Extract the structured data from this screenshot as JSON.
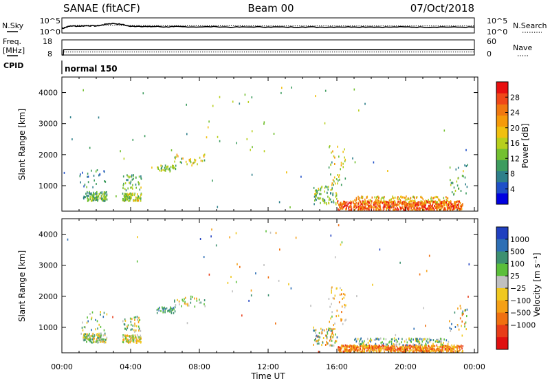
{
  "header": {
    "radar": "SANAE (fitACF)",
    "beam": "Beam 00",
    "date": "07/Oct/2018"
  },
  "colors": {
    "axis": "#000000",
    "ground_scatter": "#666666"
  },
  "chart_data": [
    {
      "id": "noise",
      "type": "line",
      "left_label": "N.Sky",
      "right_label": "N.Search",
      "left_ticks": [
        "10^5",
        "10^0"
      ],
      "right_ticks": [
        "10^5",
        "10^0"
      ],
      "y_log_range": [
        0,
        5
      ],
      "series": [
        {
          "style": "solid",
          "x": [
            0,
            0.2,
            0.5,
            1,
            1.5,
            2,
            2.3,
            2.6,
            3,
            3.5,
            4,
            4.5,
            5,
            5.5,
            6,
            6.5,
            7,
            8,
            9,
            10,
            11,
            12,
            13,
            14,
            15,
            16,
            17,
            18,
            19,
            20,
            21,
            22,
            23,
            24
          ],
          "y": [
            1.2,
            1.7,
            2.3,
            2.2,
            2.4,
            2.3,
            2.6,
            3.1,
            3.3,
            2.9,
            2.1,
            2.2,
            2.0,
            2.1,
            1.9,
            2.0,
            2.0,
            1.9,
            2.0,
            1.8,
            1.9,
            1.9,
            1.8,
            1.9,
            1.8,
            1.9,
            1.9,
            1.9,
            1.8,
            1.9,
            1.8,
            1.9,
            1.8,
            1.8
          ]
        },
        {
          "style": "dotted",
          "x": [
            0,
            0.5,
            1,
            2,
            3,
            4,
            6,
            8,
            10,
            12,
            14,
            16,
            18,
            20,
            22,
            24
          ],
          "y": [
            1.5,
            2.4,
            2.6,
            2.5,
            2.6,
            2.5,
            2.4,
            2.4,
            2.4,
            2.3,
            2.3,
            2.3,
            2.3,
            2.3,
            2.3,
            2.3
          ]
        }
      ]
    },
    {
      "id": "freq-nave",
      "type": "line",
      "left_label_1": "Freq.",
      "left_label_2": "[MHz]",
      "right_label": "Nave",
      "left_ticks": [
        "18",
        "8"
      ],
      "right_ticks": [
        "60",
        "0"
      ],
      "freq_range": [
        8,
        18
      ],
      "nave_range": [
        0,
        60
      ],
      "freq": {
        "x": [
          0,
          0.08,
          0.1,
          24
        ],
        "y": [
          8,
          8,
          11.5,
          11.5
        ]
      },
      "nave": {
        "x": [
          0.1,
          24
        ],
        "y": [
          12,
          12
        ]
      }
    },
    {
      "id": "cpid",
      "type": "table",
      "label": "CPID",
      "value": "normal 150"
    },
    {
      "id": "power",
      "type": "heatmap",
      "ylabel": "Slant Range [km]",
      "ytick_labels": [
        "1000",
        "2000",
        "3000",
        "4000"
      ],
      "y_ticks": [
        1000,
        2000,
        3000,
        4000
      ],
      "ylim": [
        180,
        4500
      ],
      "colorbar_label": "Power [dB]",
      "colorbar_ticks": [
        "4",
        "8",
        "12",
        "16",
        "20",
        "24",
        "28"
      ],
      "colorbar_tick_values": [
        4,
        8,
        12,
        16,
        20,
        24,
        28
      ],
      "colorbar_range": [
        0,
        32
      ],
      "colorbar_colors": [
        "#0000e0",
        "#1e4fc8",
        "#2e7f8a",
        "#3d9c5e",
        "#73c030",
        "#b7cf1c",
        "#f0c010",
        "#f59a0a",
        "#f07810",
        "#f04818",
        "#e81010"
      ],
      "clusters": [
        {
          "t": [
            1.2,
            2.6
          ],
          "r": [
            500,
            800
          ],
          "n": 120,
          "v": [
            6,
            18
          ],
          "seed": 1
        },
        {
          "t": [
            1.0,
            2.6
          ],
          "r": [
            900,
            1500
          ],
          "n": 25,
          "v": [
            4,
            14
          ],
          "seed": 2
        },
        {
          "t": [
            3.5,
            4.6
          ],
          "r": [
            500,
            750
          ],
          "n": 90,
          "v": [
            8,
            22
          ],
          "seed": 3
        },
        {
          "t": [
            3.5,
            4.6
          ],
          "r": [
            850,
            1350
          ],
          "n": 40,
          "v": [
            6,
            18
          ],
          "seed": 4
        },
        {
          "t": [
            5.5,
            6.6
          ],
          "r": [
            1450,
            1650
          ],
          "n": 40,
          "v": [
            8,
            20
          ],
          "seed": 5
        },
        {
          "t": [
            6.5,
            8.3
          ],
          "r": [
            1650,
            2000
          ],
          "n": 30,
          "v": [
            10,
            22
          ],
          "seed": 6
        },
        {
          "t": [
            8.0,
            13.5
          ],
          "r": [
            2000,
            4300
          ],
          "n": 22,
          "v": [
            8,
            20
          ],
          "seed": 7
        },
        {
          "t": [
            14.6,
            16.0
          ],
          "r": [
            400,
            1000
          ],
          "n": 80,
          "v": [
            6,
            20
          ],
          "seed": 8
        },
        {
          "t": [
            15.5,
            16.5
          ],
          "r": [
            1000,
            2300
          ],
          "n": 40,
          "v": [
            8,
            22
          ],
          "seed": 9
        },
        {
          "t": [
            16.0,
            23.3
          ],
          "r": [
            200,
            500
          ],
          "n": 700,
          "v": [
            20,
            32
          ],
          "seed": 10
        },
        {
          "t": [
            17.0,
            22.5
          ],
          "r": [
            450,
            650
          ],
          "n": 140,
          "v": [
            14,
            26
          ],
          "seed": 11
        },
        {
          "t": [
            22.5,
            23.6
          ],
          "r": [
            700,
            1700
          ],
          "n": 30,
          "v": [
            6,
            18
          ],
          "seed": 12
        },
        {
          "t": [
            0.0,
            24.0
          ],
          "r": [
            200,
            4300
          ],
          "n": 40,
          "v": [
            4,
            20
          ],
          "seed": 13
        }
      ]
    },
    {
      "id": "velocity",
      "type": "heatmap",
      "ylabel": "Slant Range [km]",
      "xlabel": "Time UT",
      "xtick_labels": [
        "00:00",
        "04:00",
        "08:00",
        "12:00",
        "16:00",
        "20:00",
        "00:00"
      ],
      "x_ticks": [
        0,
        4,
        8,
        12,
        16,
        20,
        24
      ],
      "xlim": [
        0,
        24
      ],
      "ytick_labels": [
        "1000",
        "2000",
        "3000",
        "4000"
      ],
      "y_ticks": [
        1000,
        2000,
        3000,
        4000
      ],
      "ylim": [
        180,
        4500
      ],
      "colorbar_label": "Velocity [m s⁻¹]",
      "colorbar_ticks": [
        "1000",
        "500",
        "100",
        "25",
        "−25",
        "−100",
        "−500",
        "−1000"
      ],
      "colorbar_colors": [
        "#2040c0",
        "#2d6fb5",
        "#3d9070",
        "#5bbf3a",
        "#c0c0c0",
        "#f0c820",
        "#f5a015",
        "#f07010",
        "#e83c18",
        "#e01010"
      ],
      "clusters": [
        {
          "t": [
            1.2,
            2.6
          ],
          "r": [
            500,
            800
          ],
          "n": 120,
          "v": [
            2,
            7
          ],
          "seed": 21
        },
        {
          "t": [
            1.0,
            2.6
          ],
          "r": [
            900,
            1500
          ],
          "n": 25,
          "v": [
            1,
            6
          ],
          "seed": 22
        },
        {
          "t": [
            3.5,
            4.6
          ],
          "r": [
            500,
            750
          ],
          "n": 90,
          "v": [
            3,
            7
          ],
          "seed": 23
        },
        {
          "t": [
            3.5,
            4.6
          ],
          "r": [
            850,
            1350
          ],
          "n": 40,
          "v": [
            2,
            7
          ],
          "seed": 24
        },
        {
          "t": [
            5.5,
            6.6
          ],
          "r": [
            1450,
            1650
          ],
          "n": 40,
          "v": [
            1,
            4
          ],
          "seed": 25
        },
        {
          "t": [
            6.5,
            8.3
          ],
          "r": [
            1650,
            2000
          ],
          "n": 30,
          "v": [
            2,
            7
          ],
          "seed": 26
        },
        {
          "t": [
            8.0,
            13.5
          ],
          "r": [
            2000,
            4300
          ],
          "n": 22,
          "v": [
            0,
            8
          ],
          "seed": 27
        },
        {
          "t": [
            14.6,
            16.0
          ],
          "r": [
            400,
            1000
          ],
          "n": 80,
          "v": [
            1,
            8
          ],
          "seed": 28
        },
        {
          "t": [
            15.5,
            16.5
          ],
          "r": [
            1000,
            2300
          ],
          "n": 40,
          "v": [
            4,
            8
          ],
          "seed": 29
        },
        {
          "t": [
            16.0,
            23.3
          ],
          "r": [
            200,
            420
          ],
          "n": 650,
          "v": [
            5,
            9
          ],
          "seed": 30
        },
        {
          "t": [
            17.0,
            22.5
          ],
          "r": [
            420,
            650
          ],
          "n": 140,
          "v": [
            1,
            6
          ],
          "seed": 31
        },
        {
          "t": [
            22.5,
            23.6
          ],
          "r": [
            700,
            1700
          ],
          "n": 30,
          "v": [
            1,
            8
          ],
          "seed": 32
        },
        {
          "t": [
            0.0,
            24.0
          ],
          "r": [
            200,
            4300
          ],
          "n": 40,
          "v": [
            0,
            9
          ],
          "seed": 33
        }
      ]
    }
  ]
}
